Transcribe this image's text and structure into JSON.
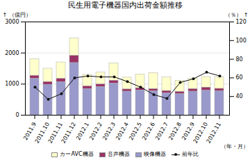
{
  "chart_data": {
    "type": "bar",
    "title": "民生用電子機器国内出荷金額推移",
    "xlabel": "（年・月）",
    "ylabel": "（億円）",
    "y2label": "（％）",
    "categories": [
      "2011.9",
      "2011.10",
      "2011.11",
      "2011.12",
      "2012.1",
      "2012.2",
      "2012.3",
      "2012.4",
      "2012.5",
      "2012.6",
      "2012.7",
      "2012.8",
      "2012.9",
      "2012.10",
      "2012.11"
    ],
    "series": [
      {
        "name": "カーAVC機器",
        "color": "#ffffcc",
        "values": [
          530,
          430,
          530,
          560,
          370,
          390,
          560,
          380,
          440,
          520,
          440,
          360,
          340,
          340,
          370
        ]
      },
      {
        "name": "音声機器",
        "color": "#993366",
        "values": [
          100,
          90,
          110,
          230,
          90,
          80,
          90,
          70,
          70,
          70,
          70,
          70,
          80,
          100,
          80
        ]
      },
      {
        "name": "映像機器",
        "color": "#9999cc",
        "values": [
          1170,
          980,
          1060,
          1680,
          840,
          910,
          1020,
          760,
          800,
          770,
          710,
          680,
          760,
          790,
          770
        ]
      },
      {
        "name": "前年比",
        "type": "line",
        "axis": "y2",
        "color": "#111111",
        "marker": "circle",
        "values": [
          50,
          37,
          43,
          60,
          62,
          61,
          61,
          56,
          50,
          42,
          38,
          55,
          59,
          66,
          62
        ]
      }
    ],
    "stacked": true,
    "ylim": [
      0,
      3000
    ],
    "yticks": [
      0,
      1000,
      2000,
      3000
    ],
    "y2lim": [
      20,
      120
    ],
    "y2ticks": [
      40,
      60,
      80,
      100,
      120
    ],
    "grid": true,
    "legend": "bottom"
  }
}
